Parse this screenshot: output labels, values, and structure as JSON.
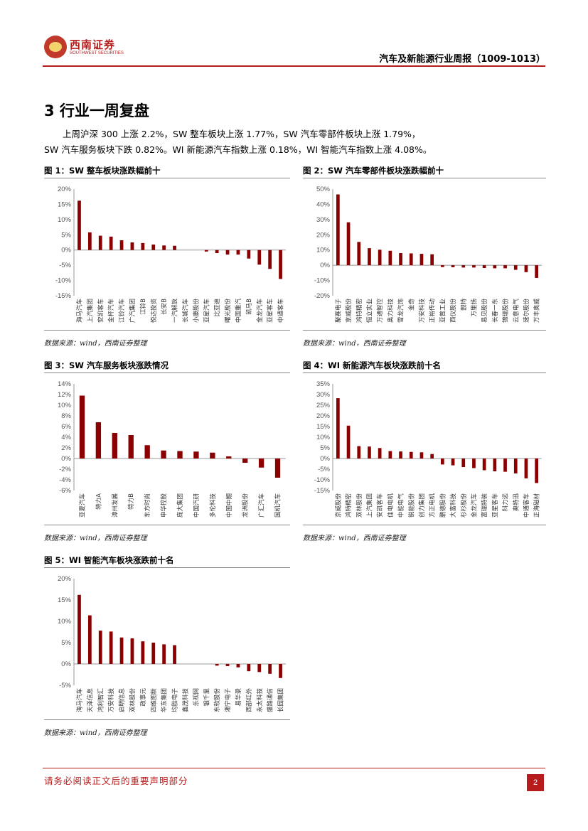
{
  "header": {
    "logo_cn": "西南证券",
    "logo_en": "SOUTHWEST SECURITIES",
    "report_title": "汽车及新能源行业周报（1009-1013）"
  },
  "section": {
    "title": "3 行业一周复盘",
    "para_line1": "上周沪深 300 上涨 2.2%，SW 整车板块上涨 1.77%，SW 汽车零部件板块上涨 1.79%，",
    "para_line2": "SW 汽车服务板块下跌 0.82%。WI 新能源汽车指数上涨 0.18%，WI 智能汽车指数上涨 4.08%。"
  },
  "figures": [
    {
      "title": "图 1：SW 整车板块涨跌幅前十",
      "source": "数据来源：wind，西南证券整理"
    },
    {
      "title": "图 2：SW 汽车零部件板块涨跌幅前十",
      "source": "数据来源：wind，西南证券整理"
    },
    {
      "title": "图 3：SW 汽车服务板块涨跌情况",
      "source": "数据来源：wind，西南证券整理"
    },
    {
      "title": "图 4：WI 新能源汽车板块涨跌前十名",
      "source": "数据来源：wind，西南证券整理"
    },
    {
      "title": "图 5：WI 智能汽车板块涨跌前十名",
      "source": "数据来源：wind，西南证券整理"
    }
  ],
  "footer": {
    "disclaimer": "请务必阅读正文后的重要声明部分",
    "page": "2"
  },
  "colors": {
    "bar": "#8b0000",
    "accent": "#b71c1c"
  },
  "chart_data": [
    {
      "type": "bar",
      "title": "图 1：SW 整车板块涨跌幅前十",
      "categories": [
        "海马汽车",
        "上汽集团",
        "安凯客车",
        "金杯汽车",
        "江铃汽车",
        "广汽集团",
        "江铃B",
        "悦达投资",
        "长安B",
        "一汽解放",
        "长城汽车",
        "小康股份",
        "亚星汽车",
        "比亚迪",
        "曙光股份",
        "中国重汽",
        "凯马B",
        "金龙汽车",
        "亚星客车",
        "中通客车"
      ],
      "values": [
        16.2,
        5.8,
        4.7,
        4.4,
        3.2,
        2.5,
        2.3,
        1.8,
        1.5,
        1.4,
        0,
        0,
        -0.5,
        -1.0,
        -1.5,
        -1.5,
        -2.8,
        -4.8,
        -6.2,
        -9.5
      ],
      "ylim": [
        -15,
        20
      ],
      "yticks": [
        -15,
        -10,
        -5,
        0,
        5,
        10,
        15,
        20
      ],
      "ytick_labels": [
        "-15%",
        "-10%",
        "-5%",
        "0%",
        "5%",
        "10%",
        "15%",
        "20%"
      ]
    },
    {
      "type": "bar",
      "title": "图 2：SW 汽车零部件板块涨跌幅前十",
      "categories": [
        "聚赛电子",
        "京威股份",
        "鸿特精密",
        "恒立实业",
        "万通智控",
        "奥力科技",
        "雪龙汽饰",
        "金奇",
        "万安科技",
        "正裕传动",
        "亚普工业",
        "西仪股份",
        "靓特",
        "万里扬",
        "易见股份",
        "长春一东",
        "锦瑞股份",
        "云意电气",
        "速尔股份",
        "万丰奥威"
      ],
      "values": [
        46.5,
        28.2,
        15.3,
        11.2,
        10.2,
        9.5,
        8.0,
        7.8,
        7.5,
        7.2,
        -1.2,
        -1.3,
        -1.5,
        -1.5,
        -1.8,
        -2.0,
        -2.0,
        -3.0,
        -4.5,
        -8.3
      ],
      "ylim": [
        -20,
        50
      ],
      "yticks": [
        -20,
        -10,
        0,
        10,
        20,
        30,
        40,
        50
      ],
      "ytick_labels": [
        "-20%",
        "-10%",
        "0%",
        "10%",
        "20%",
        "30%",
        "40%",
        "50%"
      ]
    },
    {
      "type": "bar",
      "title": "图 3：SW 汽车服务板块涨跌情况",
      "categories": [
        "亚夏汽车",
        "特力A",
        "漳州发展",
        "特力B",
        "东方时尚",
        "申华控股",
        "庞大集团",
        "中国汽研",
        "多伦科技",
        "中国中期",
        "龙洲股份",
        "广汇汽车",
        "国机汽车"
      ],
      "values": [
        11.8,
        6.8,
        4.8,
        4.4,
        2.5,
        1.5,
        1.4,
        1.3,
        1.1,
        0.4,
        -0.8,
        -1.7,
        -3.6
      ],
      "ylim": [
        -6,
        14
      ],
      "yticks": [
        -6,
        -4,
        -2,
        0,
        2,
        4,
        6,
        8,
        10,
        12,
        14
      ],
      "ytick_labels": [
        "-6%",
        "-4%",
        "-2%",
        "0%",
        "2%",
        "4%",
        "6%",
        "8%",
        "10%",
        "12%",
        "14%"
      ]
    },
    {
      "type": "bar",
      "title": "图 4：WI 新能源汽车板块涨跌前十名",
      "categories": [
        "京威股份",
        "鸿特精密",
        "双林股份",
        "上汽集团",
        "安凯客车",
        "佳电电机",
        "中能电气",
        "锐能股份",
        "创力集团",
        "方正电机",
        "鹏德股份",
        "大富科技",
        "杉杉股份",
        "金龙汽车",
        "富瑞特装",
        "亚星客车",
        "科力远",
        "奥特迅",
        "中通客车",
        "正海磁材"
      ],
      "values": [
        28.3,
        15.4,
        5.8,
        5.6,
        4.9,
        3.5,
        3.3,
        3.1,
        2.9,
        2.1,
        -2.8,
        -3.2,
        -4.0,
        -4.5,
        -5.5,
        -6.0,
        -6.2,
        -7.0,
        -9.3,
        -11.5
      ],
      "ylim": [
        -15,
        35
      ],
      "yticks": [
        -15,
        -10,
        -5,
        0,
        5,
        10,
        15,
        20,
        25,
        30,
        35
      ],
      "ytick_labels": [
        "-15%",
        "-10%",
        "-5%",
        "0%",
        "5%",
        "10%",
        "15%",
        "20%",
        "25%",
        "30%",
        "35%"
      ]
    },
    {
      "type": "bar",
      "title": "图 5：WI 智能汽车板块涨跌前十名",
      "categories": [
        "海马汽车",
        "天泽信息",
        "鸿利智汇",
        "万安科技",
        "启明信息",
        "双林股份",
        "政事元",
        "四维图新",
        "华东集团",
        "均胜电子",
        "鑫茂科技",
        "乐视网",
        "银千里",
        "东软股份",
        "湘宁电子",
        "易华录",
        "西部红外",
        "永太科技",
        "盛路通信",
        "长园集团"
      ],
      "values": [
        16.2,
        11.4,
        7.8,
        7.6,
        6.2,
        6.0,
        5.3,
        5.0,
        4.6,
        4.4,
        0,
        0,
        0,
        -0.4,
        -0.5,
        -0.8,
        -1.7,
        -1.9,
        -2.3,
        -3.3
      ],
      "ylim": [
        -5,
        20
      ],
      "yticks": [
        -5,
        0,
        5,
        10,
        15,
        20
      ],
      "ytick_labels": [
        "-5%",
        "0%",
        "5%",
        "10%",
        "15%",
        "20%"
      ]
    }
  ]
}
